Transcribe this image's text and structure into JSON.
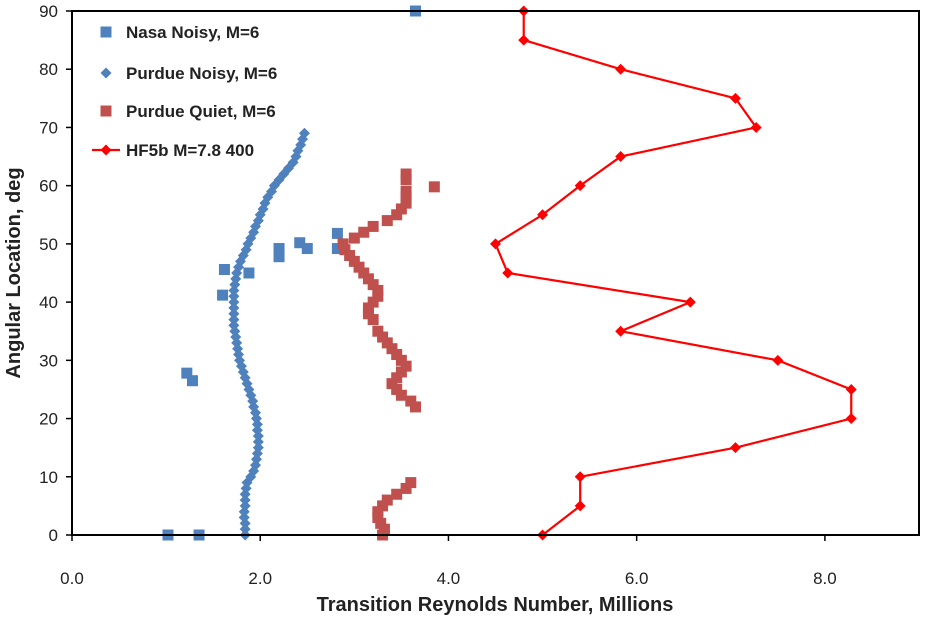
{
  "chart_data": {
    "type": "scatter",
    "xlabel": "Transition Reynolds Number, Millions",
    "ylabel": "Angular Location, deg",
    "xlim": [
      0,
      9
    ],
    "ylim": [
      0,
      90
    ],
    "xticks": [
      "0.0",
      "2.0",
      "4.0",
      "6.0",
      "8.0"
    ],
    "yticks": [
      "0",
      "10",
      "20",
      "30",
      "40",
      "50",
      "60",
      "70",
      "80",
      "90"
    ],
    "grid": false,
    "legend_position": "top-left",
    "series": [
      {
        "name": "Nasa Noisy, M=6",
        "marker": "square",
        "color": "#4f81bd",
        "points": [
          [
            1.02,
            0
          ],
          [
            1.35,
            0
          ],
          [
            1.28,
            26.5
          ],
          [
            1.22,
            27.8
          ],
          [
            1.6,
            41.2
          ],
          [
            1.62,
            45.6
          ],
          [
            1.88,
            45.0
          ],
          [
            2.2,
            47.8
          ],
          [
            2.2,
            49.2
          ],
          [
            2.5,
            49.2
          ],
          [
            2.42,
            50.2
          ],
          [
            2.82,
            49.2
          ],
          [
            2.82,
            51.8
          ],
          [
            3.65,
            90
          ]
        ]
      },
      {
        "name": "Purdue Noisy, M=6",
        "marker": "diamond",
        "color": "#4f81bd",
        "points": [
          [
            1.84,
            0
          ],
          [
            1.84,
            1
          ],
          [
            1.84,
            2
          ],
          [
            1.83,
            3
          ],
          [
            1.83,
            4
          ],
          [
            1.84,
            5
          ],
          [
            1.84,
            6
          ],
          [
            1.84,
            7
          ],
          [
            1.85,
            8
          ],
          [
            1.86,
            9
          ],
          [
            1.9,
            10
          ],
          [
            1.93,
            11
          ],
          [
            1.95,
            12
          ],
          [
            1.96,
            13
          ],
          [
            1.97,
            14
          ],
          [
            1.98,
            15
          ],
          [
            1.98,
            16
          ],
          [
            1.98,
            17
          ],
          [
            1.97,
            18
          ],
          [
            1.97,
            19
          ],
          [
            1.96,
            20
          ],
          [
            1.95,
            21
          ],
          [
            1.93,
            22
          ],
          [
            1.92,
            23
          ],
          [
            1.9,
            24
          ],
          [
            1.88,
            25
          ],
          [
            1.86,
            26
          ],
          [
            1.84,
            27
          ],
          [
            1.82,
            28
          ],
          [
            1.8,
            29
          ],
          [
            1.78,
            30
          ],
          [
            1.77,
            31
          ],
          [
            1.76,
            32
          ],
          [
            1.75,
            33
          ],
          [
            1.74,
            34
          ],
          [
            1.73,
            35
          ],
          [
            1.72,
            36
          ],
          [
            1.72,
            37
          ],
          [
            1.72,
            38
          ],
          [
            1.72,
            39
          ],
          [
            1.72,
            40
          ],
          [
            1.72,
            41
          ],
          [
            1.72,
            42
          ],
          [
            1.73,
            43
          ],
          [
            1.74,
            44
          ],
          [
            1.75,
            45
          ],
          [
            1.77,
            46
          ],
          [
            1.79,
            47
          ],
          [
            1.82,
            48
          ],
          [
            1.85,
            49
          ],
          [
            1.87,
            50
          ],
          [
            1.9,
            51
          ],
          [
            1.93,
            52
          ],
          [
            1.95,
            53
          ],
          [
            1.98,
            54
          ],
          [
            2.0,
            55
          ],
          [
            2.03,
            56
          ],
          [
            2.05,
            57
          ],
          [
            2.08,
            58
          ],
          [
            2.12,
            59
          ],
          [
            2.15,
            60
          ],
          [
            2.2,
            61
          ],
          [
            2.25,
            62
          ],
          [
            2.3,
            63
          ],
          [
            2.35,
            64
          ],
          [
            2.38,
            65
          ],
          [
            2.4,
            66
          ],
          [
            2.43,
            67
          ],
          [
            2.45,
            68
          ],
          [
            2.47,
            69
          ]
        ]
      },
      {
        "name": "Purdue Quiet, M=6",
        "marker": "square",
        "color": "#c0504d",
        "points": [
          [
            3.3,
            0
          ],
          [
            3.32,
            1
          ],
          [
            3.28,
            2
          ],
          [
            3.25,
            3
          ],
          [
            3.25,
            4
          ],
          [
            3.3,
            5
          ],
          [
            3.35,
            6
          ],
          [
            3.45,
            7
          ],
          [
            3.55,
            8
          ],
          [
            3.6,
            9
          ],
          [
            3.65,
            22
          ],
          [
            3.6,
            23
          ],
          [
            3.5,
            24
          ],
          [
            3.45,
            25
          ],
          [
            3.4,
            26
          ],
          [
            3.45,
            27
          ],
          [
            3.5,
            28
          ],
          [
            3.55,
            29
          ],
          [
            3.5,
            30
          ],
          [
            3.45,
            31
          ],
          [
            3.4,
            32
          ],
          [
            3.35,
            33
          ],
          [
            3.3,
            34
          ],
          [
            3.25,
            35
          ],
          [
            3.2,
            37
          ],
          [
            3.15,
            38
          ],
          [
            3.15,
            39
          ],
          [
            3.2,
            40
          ],
          [
            3.25,
            41
          ],
          [
            3.25,
            42
          ],
          [
            3.2,
            43
          ],
          [
            3.15,
            44
          ],
          [
            3.1,
            45
          ],
          [
            3.05,
            46
          ],
          [
            3.0,
            47
          ],
          [
            2.95,
            48
          ],
          [
            2.9,
            49
          ],
          [
            2.88,
            50
          ],
          [
            3.0,
            51
          ],
          [
            3.1,
            52
          ],
          [
            3.2,
            53
          ],
          [
            3.35,
            54
          ],
          [
            3.45,
            55
          ],
          [
            3.5,
            56
          ],
          [
            3.55,
            57
          ],
          [
            3.55,
            58
          ],
          [
            3.55,
            59
          ],
          [
            3.85,
            59.8
          ],
          [
            3.55,
            61
          ],
          [
            3.55,
            62
          ]
        ]
      },
      {
        "name": "HF5b M=7.8 400",
        "marker": "diamond",
        "line": true,
        "color": "#ff0000",
        "points": [
          [
            5.0,
            0
          ],
          [
            5.4,
            5
          ],
          [
            5.4,
            10
          ],
          [
            7.05,
            15
          ],
          [
            8.28,
            20
          ],
          [
            8.28,
            25
          ],
          [
            7.5,
            30
          ],
          [
            5.83,
            35
          ],
          [
            6.57,
            40
          ],
          [
            4.63,
            45
          ],
          [
            4.5,
            50
          ],
          [
            5.0,
            55
          ],
          [
            5.4,
            60
          ],
          [
            5.83,
            65
          ],
          [
            7.27,
            70
          ],
          [
            7.05,
            75
          ],
          [
            5.83,
            80
          ],
          [
            4.8,
            85
          ],
          [
            4.8,
            90
          ]
        ]
      }
    ]
  }
}
